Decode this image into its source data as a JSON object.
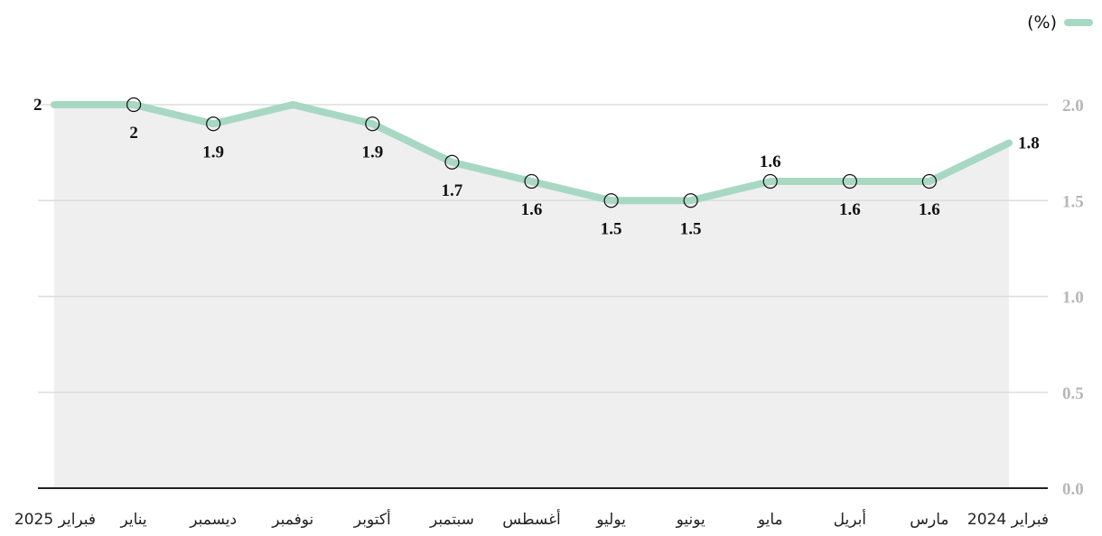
{
  "legend": {
    "unit_label": "(%)"
  },
  "colors": {
    "line": "#a8d8c2",
    "area": "#efefef",
    "grid": "#dddddd",
    "axis": "#222222"
  },
  "chart_data": {
    "type": "line",
    "direction": "rtl",
    "categories": [
      "فبراير 2024",
      "مارس",
      "أبريل",
      "مايو",
      "يونيو",
      "يوليو",
      "أغسطس",
      "سبتمبر",
      "أكتوبر",
      "نوفمبر",
      "ديسمبر",
      "يناير",
      "فبراير 2025"
    ],
    "series": [
      {
        "name": "(%)",
        "values": [
          1.8,
          1.6,
          1.6,
          1.6,
          1.5,
          1.5,
          1.6,
          1.7,
          1.9,
          2.0,
          1.9,
          2.0,
          2.0
        ]
      }
    ],
    "data_labels": [
      "1.8",
      "1.6",
      "1.6",
      "1.6",
      "1.5",
      "1.5",
      "1.6",
      "1.7",
      "1.9",
      "",
      "1.9",
      "2",
      "2"
    ],
    "ylim": [
      0,
      2.0
    ],
    "yticks": [
      "0.0",
      "0.5",
      "1.0",
      "1.5",
      "2.0"
    ],
    "y_axis_position": "right",
    "grid": true,
    "legend_position": "top-right"
  }
}
